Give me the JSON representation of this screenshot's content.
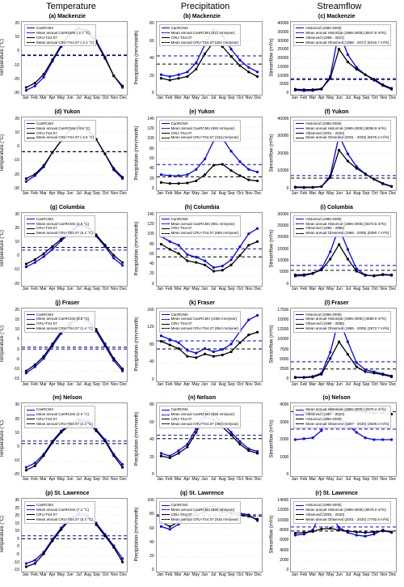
{
  "columns": [
    "Temperature",
    "Precipitation",
    "Streamflow"
  ],
  "months": [
    "Jan",
    "Feb",
    "Mar",
    "Apr",
    "May",
    "Jun",
    "Jul",
    "Aug",
    "Sep",
    "Oct",
    "Nov",
    "Dec"
  ],
  "colors": {
    "model": "#0000ff",
    "obs": "#000000",
    "gridline": "#dddddd",
    "border": "#999999"
  },
  "style": {
    "line_width": 1.3,
    "marker_radius": 1.6,
    "dash": "4,3",
    "panel_bg": "#ffffff"
  },
  "panels": [
    {
      "id": "a",
      "title": "(a) Mackenzie",
      "ylabel": "Temperature  (°C)",
      "ymin": -30,
      "ymax": 20,
      "yticks": [
        -30,
        -20,
        -10,
        0,
        10,
        20
      ],
      "series1": [
        -27,
        -24,
        -18,
        -7,
        3,
        12,
        16,
        14,
        7,
        -4,
        -17,
        -25
      ],
      "series2": [
        -25,
        -22,
        -16,
        -6,
        4,
        12,
        15,
        13,
        6,
        -5,
        -17,
        -24
      ],
      "mean1": -2.7,
      "mean2": -3.1,
      "legend": [
        "CanRCM4",
        "Mean annual CanRCM4  (-2.7 °C)",
        "CRU-TS4.07",
        "Mean annual CRU-TS4.07  (-3.1 °C)"
      ]
    },
    {
      "id": "b",
      "title": "(b) Mackenzie",
      "ylabel": "Precipitation (mm/month)",
      "ymin": 0,
      "ymax": 80,
      "yticks": [
        0,
        20,
        40,
        60,
        80
      ],
      "series1": [
        22,
        20,
        22,
        25,
        35,
        55,
        72,
        65,
        50,
        38,
        30,
        25
      ],
      "series2": [
        18,
        16,
        18,
        20,
        28,
        45,
        58,
        53,
        42,
        32,
        25,
        20
      ],
      "mean1": 42.7,
      "mean2": 33.7,
      "legend": [
        "CanRCM4",
        "Mean annual CanRCM4  (512 mm/year)",
        "CRU-TS4.07",
        "Mean annual CRU-TS4.07  (404 mm/year)"
      ]
    },
    {
      "id": "c",
      "title": "(c) Mackenzie",
      "ylabel": "Streamflow (m³/s)",
      "ymin": 0,
      "ymax": 40000,
      "yticks": [
        0,
        5000,
        10000,
        15000,
        20000,
        25000,
        30000,
        35000,
        40000
      ],
      "series1": [
        2500,
        2200,
        2300,
        3000,
        10000,
        35000,
        22000,
        15000,
        11000,
        8000,
        5000,
        3000
      ],
      "series2": [
        3000,
        2800,
        2800,
        3300,
        9000,
        25000,
        18000,
        14000,
        11000,
        8500,
        5500,
        3500
      ],
      "mean1": 8847.8,
      "mean2": 8316.7,
      "legend": [
        "Historical (1986-2005)",
        "Mean annual Historical (1986-2005)  (8847.8 m³/s)",
        "Observed (1998 - 2017)",
        "Mean annual Observed (1998 - 2017)  (8316.7 m³/s)"
      ]
    },
    {
      "id": "d",
      "title": "(d) Yukon",
      "ylabel": "Temperature  (°C)",
      "ymin": -30,
      "ymax": 20,
      "yticks": [
        -30,
        -20,
        -10,
        0,
        10,
        20
      ],
      "series1": [
        -24,
        -20,
        -14,
        -4,
        4,
        11,
        14,
        12,
        5,
        -5,
        -16,
        -22
      ],
      "series2": [
        -22,
        -19,
        -13,
        -4,
        4,
        11,
        13,
        11,
        5,
        -5,
        -15,
        -21
      ],
      "mean1": -3.6,
      "mean2": -3.5,
      "legend": [
        "CanRCM4",
        "Mean annual CanRCM4  (-3.6 °C)",
        "CRU-TS4.07",
        "Mean annual CRU-TS4.07  (-3.5 °C)"
      ]
    },
    {
      "id": "e",
      "title": "(e) Yukon",
      "ylabel": "Precipitation (mm/month)",
      "ymin": 0,
      "ymax": 140,
      "yticks": [
        0,
        20,
        40,
        60,
        80,
        100,
        120,
        140
      ],
      "series1": [
        30,
        28,
        28,
        30,
        40,
        60,
        95,
        100,
        75,
        55,
        40,
        35
      ],
      "series2": [
        15,
        13,
        13,
        14,
        18,
        30,
        48,
        50,
        38,
        28,
        20,
        18
      ],
      "mean1": 49.4,
      "mean2": 25.8,
      "legend": [
        "CanRCM4",
        "Mean annual CanRCM4  (593 mm/year)",
        "CRU-TS4.07",
        "Mean annual CRU-TS4.07  (310 mm/year)"
      ]
    },
    {
      "id": "f",
      "title": "(f) Yukon",
      "ylabel": "Streamflow (m³/s)",
      "ymin": 0,
      "ymax": 40000,
      "yticks": [
        0,
        10000,
        20000,
        30000,
        40000
      ],
      "series1": [
        1500,
        1400,
        1500,
        2000,
        8000,
        30000,
        20000,
        13000,
        9000,
        6000,
        3500,
        2000
      ],
      "series2": [
        1800,
        1700,
        1700,
        2100,
        7000,
        22000,
        16000,
        12000,
        9000,
        6200,
        3800,
        2200
      ],
      "mean1": 8058.9,
      "mean2": 6676.2,
      "legend": [
        "Historical (1986-2005)",
        "Mean annual Historical (1986-2005)  (8058.9 m³/s)",
        "Observed (2001 - 2020)",
        "Mean annual Observed (2001 - 2020)  (6676.2 m³/s)"
      ]
    },
    {
      "id": "g",
      "title": "(g) Columbia",
      "ylabel": "Temperature  (°C)",
      "ymin": -20,
      "ymax": 30,
      "yticks": [
        -20,
        -10,
        0,
        10,
        20,
        30
      ],
      "series1": [
        -7,
        -4,
        0,
        5,
        11,
        16,
        21,
        20,
        14,
        7,
        -1,
        -6
      ],
      "series2": [
        -5,
        -2,
        2,
        7,
        12,
        17,
        22,
        21,
        15,
        8,
        1,
        -4
      ],
      "mean1": 4.5,
      "mean2": 6.3,
      "legend": [
        "CanRCM4",
        "Mean annual CanRCM4  (4.5 °C)",
        "CRU-TS4.07",
        "Mean annual CRU-TS4.07  (6.3 °C)"
      ]
    },
    {
      "id": "h",
      "title": "(h) Columbia",
      "ylabel": "Precipitation (mm/month)",
      "ymin": 0,
      "ymax": 140,
      "yticks": [
        0,
        20,
        40,
        60,
        80,
        100,
        120,
        140
      ],
      "series1": [
        95,
        85,
        78,
        60,
        55,
        48,
        35,
        38,
        50,
        75,
        100,
        110
      ],
      "series2": [
        80,
        70,
        62,
        48,
        45,
        40,
        28,
        30,
        40,
        58,
        78,
        85
      ],
      "mean1": 70.9,
      "mean2": 55.7,
      "legend": [
        "CanRCM4",
        "Mean annual CanRCM4  (851 mm/year)",
        "CRU-TS4.07",
        "Mean annual CRU-TS4.07  (668 mm/year)"
      ]
    },
    {
      "id": "i",
      "title": "(i) Columbia",
      "ylabel": "Streamflow (m³/s)",
      "ymin": 0,
      "ymax": 30000,
      "yticks": [
        0,
        5000,
        10000,
        15000,
        20000,
        25000,
        30000
      ],
      "series1": [
        4000,
        4200,
        5000,
        7000,
        14000,
        24000,
        15000,
        7000,
        4500,
        4000,
        4500,
        4300
      ],
      "series2": [
        4500,
        4600,
        5200,
        6500,
        11000,
        17000,
        11000,
        6000,
        4300,
        4200,
        4700,
        4500
      ],
      "mean1": 8373.6,
      "mean2": 6390.7,
      "legend": [
        "Historical (1986-2005)",
        "Mean annual Historical (1986-2005)  (8373.6 m³/s)",
        "Observed (1986 - 2005)",
        "Mean annual Observed (1986 - 2005)  (6390.7 m³/s)"
      ]
    },
    {
      "id": "j",
      "title": "(j) Fraser",
      "ylabel": "Temperature  (°C)",
      "ymin": -15,
      "ymax": 20,
      "yticks": [
        -15,
        -10,
        -5,
        0,
        5,
        10,
        15,
        20
      ],
      "series1": [
        -11,
        -8,
        -4,
        2,
        8,
        12,
        15,
        14,
        9,
        2,
        -5,
        -10
      ],
      "series2": [
        -10,
        -7,
        -3,
        3,
        9,
        13,
        16,
        15,
        10,
        3,
        -4,
        -9
      ],
      "mean1": 0.5,
      "mean2": 1.4,
      "legend": [
        "CanRCM4",
        "Mean annual CanRCM4  (0.5 °C)",
        "CRU-TS4.07",
        "Mean annual CRU-TS4.07  (1.4 °C)"
      ]
    },
    {
      "id": "k",
      "title": "(k) Fraser",
      "ylabel": "Precipitation (mm/month)",
      "ymin": 0,
      "ymax": 160,
      "yticks": [
        0,
        40,
        80,
        120,
        160
      ],
      "series1": [
        100,
        92,
        85,
        68,
        62,
        72,
        65,
        70,
        82,
        110,
        135,
        145
      ],
      "series2": [
        88,
        80,
        72,
        55,
        52,
        60,
        55,
        58,
        65,
        85,
        102,
        108
      ],
      "mean1": 88.8,
      "mean2": 71.2,
      "legend": [
        "CanRCM4",
        "Mean annual CanRCM4  (1066 mm/year)",
        "CRU-TS4.07",
        "Mean annual CRU-TS4.07  (854 mm/year)"
      ]
    },
    {
      "id": "l",
      "title": "(l) Fraser",
      "ylabel": "Streamflow (m³/s)",
      "ymin": 0,
      "ymax": 17500,
      "yticks": [
        0,
        2500,
        5000,
        7500,
        10000,
        12500,
        15000,
        17500
      ],
      "series1": [
        1000,
        1000,
        1200,
        2000,
        7000,
        15000,
        9500,
        4500,
        2800,
        2300,
        1800,
        1300
      ],
      "series2": [
        900,
        900,
        1000,
        1700,
        5500,
        9500,
        6500,
        3500,
        2300,
        2000,
        1600,
        1100
      ],
      "mean1": 4688.9,
      "mean2": 2972.7,
      "legend": [
        "Historical (1986-2005)",
        "Mean annual Historical (1986-2005)  (4688.9 m³/s)",
        "Observed (1986 - 2005)",
        "Mean annual Observed (1986 - 2005)  (2972.7 m³/s)"
      ]
    },
    {
      "id": "m",
      "title": "(m) Nelson",
      "ylabel": "Temperature  (°C)",
      "ymin": -20,
      "ymax": 30,
      "yticks": [
        -20,
        -10,
        0,
        10,
        20,
        30
      ],
      "series1": [
        -14,
        -11,
        -5,
        4,
        11,
        16,
        19,
        18,
        12,
        5,
        -5,
        -12
      ],
      "series2": [
        -16,
        -13,
        -6,
        3,
        10,
        15,
        18,
        17,
        11,
        4,
        -6,
        -14
      ],
      "mean1": 4.0,
      "mean2": 2.3,
      "legend": [
        "CanRCM4",
        "Mean annual CanRCM4  (4.0 °C)",
        "CRU-TS4.07",
        "Mean annual CRU-TS4.07  (2.3 °C)"
      ]
    },
    {
      "id": "n",
      "title": "(n) Nelson",
      "ylabel": "Precipitation (mm/month)",
      "ymin": 0,
      "ymax": 80,
      "yticks": [
        0,
        20,
        40,
        60,
        80
      ],
      "series1": [
        25,
        22,
        28,
        35,
        52,
        72,
        68,
        58,
        48,
        38,
        30,
        27
      ],
      "series2": [
        22,
        20,
        25,
        32,
        48,
        65,
        62,
        54,
        45,
        35,
        28,
        25
      ],
      "mean1": 44.8,
      "mean2": 41.1,
      "legend": [
        "CanRCM4",
        "Mean annual CanRCM4  (538 mm/year)",
        "CRU-TS4.07",
        "Mean annual CRU-TS4.07  (493 mm/year)"
      ]
    },
    {
      "id": "o",
      "title": "(o) Nelson",
      "ylabel": "Streamflow (m³/s)",
      "ymin": 0,
      "ymax": 4000,
      "yticks": [
        0,
        1000,
        2000,
        3000,
        4000
      ],
      "series1": [
        2000,
        2050,
        2100,
        2500,
        3700,
        3300,
        2800,
        2400,
        2100,
        2000,
        2000,
        2000
      ],
      "series2": [
        3400,
        3450,
        3500,
        3550,
        3700,
        3650,
        3600,
        3550,
        3500,
        3450,
        3450,
        3400
      ],
      "mean1": 2575.2,
      "mean2": 3539.3,
      "legend": [
        "Mean annual Historical (1986-2005)  (2575.2 m³/s)",
        "Observed (1987 - 2020)",
        "Historical (1986-2005)",
        "Mean annual Observed (1987 - 2020)  (3539.3 m³/s)"
      ]
    },
    {
      "id": "p",
      "title": "(p) St. Lawrence",
      "ylabel": "Temperature  (°C)",
      "ymin": -15,
      "ymax": 30,
      "yticks": [
        -15,
        -10,
        -5,
        0,
        5,
        10,
        15,
        20,
        25,
        30
      ],
      "series1": [
        -10,
        -8,
        -3,
        5,
        12,
        18,
        21,
        20,
        15,
        8,
        1,
        -7
      ],
      "series2": [
        -12,
        -10,
        -4,
        4,
        11,
        17,
        20,
        19,
        14,
        7,
        0,
        -9
      ],
      "mean1": 7.1,
      "mean2": 5.3,
      "legend": [
        "CanRCM4",
        "Mean annual CanRCM4  (7.1 °C)",
        "CRU-TS4.07",
        "Mean annual CRU-TS4.07  (5.3 °C)"
      ]
    },
    {
      "id": "q",
      "title": "(q) St. Lawrence",
      "ylabel": "Precipitation (mm/month)",
      "ymin": 0,
      "ymax": 100,
      "yticks": [
        0,
        20,
        40,
        60,
        80,
        100
      ],
      "series1": [
        62,
        58,
        65,
        75,
        82,
        88,
        90,
        85,
        82,
        80,
        78,
        70
      ],
      "series2": [
        68,
        62,
        68,
        74,
        78,
        82,
        85,
        82,
        80,
        78,
        76,
        72
      ],
      "mean1": 77.9,
      "mean2": 76.3,
      "legend": [
        "CanRCM4",
        "Mean annual CanRCM4  (935 mm/year)",
        "CRU-TS4.07",
        "Mean annual CRU-TS4.07  (915 mm/year)"
      ]
    },
    {
      "id": "r",
      "title": "(r) St. Lawrence",
      "ylabel": "Streamflow (m³/s)",
      "ymin": 0,
      "ymax": 14000,
      "yticks": [
        0,
        2000,
        4000,
        6000,
        8000,
        10000,
        12000,
        14000
      ],
      "series1": [
        7000,
        7200,
        8000,
        11500,
        11000,
        8500,
        7500,
        7000,
        6800,
        7200,
        8000,
        7500
      ],
      "series2": [
        7400,
        7500,
        7700,
        8200,
        8300,
        8000,
        7800,
        7600,
        7500,
        7600,
        7800,
        7600
      ],
      "mean1": 8578.0,
      "mean2": 7792.9,
      "legend": [
        "Historical (1986-2005)",
        "Mean annual Historical (1986-2005)  (8578.0 m³/s)",
        "Observed (2001 - 2020)",
        "Mean annual Observed (2001 - 2020)  (7792.9 m³/s)"
      ]
    }
  ]
}
